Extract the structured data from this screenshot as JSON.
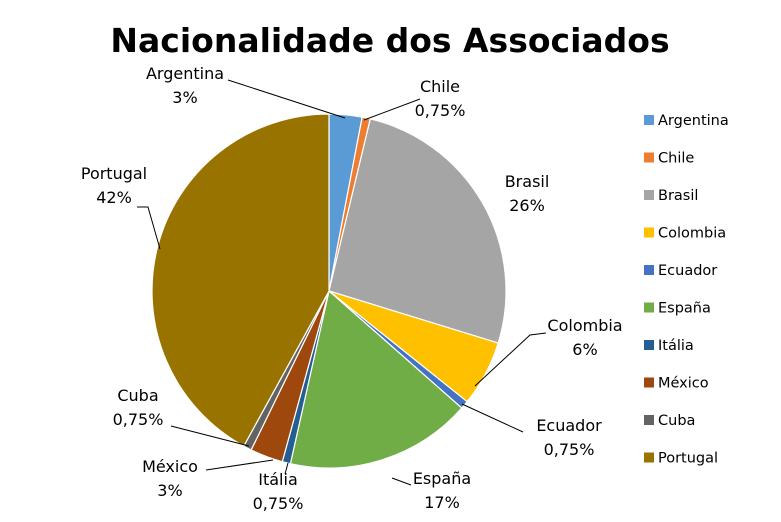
{
  "chart_data": {
    "type": "pie",
    "title": "Nacionalidade dos Associados",
    "legend_position": "right",
    "slices": [
      {
        "name": "Argentina",
        "value": 3,
        "label": "3%",
        "color": "#5B9BD5"
      },
      {
        "name": "Chile",
        "value": 0.75,
        "label": "0,75%",
        "color": "#ED7D31"
      },
      {
        "name": "Brasil",
        "value": 26,
        "label": "26%",
        "color": "#A5A5A5"
      },
      {
        "name": "Colombia",
        "value": 6,
        "label": "6%",
        "color": "#FFC000"
      },
      {
        "name": "Ecuador",
        "value": 0.75,
        "label": "0,75%",
        "color": "#4472C4"
      },
      {
        "name": "España",
        "value": 17,
        "label": "17%",
        "color": "#70AD47"
      },
      {
        "name": "Itália",
        "value": 0.75,
        "label": "0,75%",
        "color": "#255E91"
      },
      {
        "name": "México",
        "value": 3,
        "label": "3%",
        "color": "#9E480E"
      },
      {
        "name": "Cuba",
        "value": 0.75,
        "label": "0,75%",
        "color": "#636363"
      },
      {
        "name": "Portugal",
        "value": 42,
        "label": "42%",
        "color": "#997300"
      }
    ]
  }
}
